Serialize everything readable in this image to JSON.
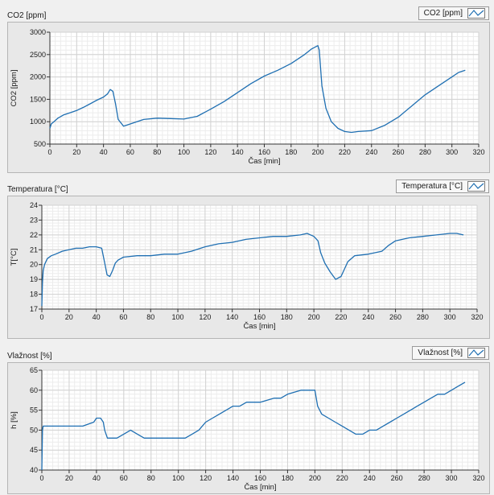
{
  "chart_data": [
    {
      "type": "line",
      "title": "CO2 [ppm]",
      "legend": "CO2 [ppm]",
      "xlabel": "Čas [min]",
      "ylabel": "CO2 [ppm]",
      "xlim": [
        0,
        320
      ],
      "ylim": [
        500,
        3000
      ],
      "xticks": [
        0,
        20,
        40,
        60,
        80,
        100,
        120,
        140,
        160,
        180,
        200,
        220,
        240,
        260,
        280,
        300,
        320
      ],
      "yticks": [
        500,
        1000,
        1500,
        2000,
        2500,
        3000
      ],
      "color": "#1f6fb2",
      "grid": true,
      "legend_position": "top-right",
      "series": [
        {
          "x": [
            0,
            1,
            3,
            6,
            10,
            15,
            20,
            25,
            30,
            35,
            40,
            43,
            45,
            47,
            49,
            51,
            55,
            60,
            70,
            80,
            90,
            100,
            110,
            120,
            130,
            140,
            150,
            160,
            170,
            180,
            190,
            195,
            200,
            201,
            203,
            206,
            210,
            215,
            220,
            225,
            230,
            240,
            250,
            260,
            270,
            280,
            290,
            300,
            305,
            310
          ],
          "y": [
            850,
            950,
            1000,
            1080,
            1150,
            1200,
            1250,
            1320,
            1400,
            1480,
            1550,
            1620,
            1720,
            1680,
            1400,
            1050,
            900,
            950,
            1050,
            1080,
            1070,
            1060,
            1120,
            1280,
            1450,
            1650,
            1850,
            2020,
            2150,
            2300,
            2500,
            2620,
            2700,
            2600,
            1800,
            1300,
            1000,
            850,
            780,
            760,
            780,
            800,
            920,
            1100,
            1350,
            1600,
            1800,
            2000,
            2100,
            2150
          ]
        }
      ]
    },
    {
      "type": "line",
      "title": "Temperatura [°C]",
      "legend": "Temperatura [°C]",
      "xlabel": "Čas [min]",
      "ylabel": "T[°C]",
      "xlim": [
        0,
        320
      ],
      "ylim": [
        17,
        24
      ],
      "xticks": [
        0,
        20,
        40,
        60,
        80,
        100,
        120,
        140,
        160,
        180,
        200,
        220,
        240,
        260,
        280,
        300,
        320
      ],
      "yticks": [
        17,
        18,
        19,
        20,
        21,
        22,
        23,
        24
      ],
      "color": "#1f6fb2",
      "grid": true,
      "legend_position": "top-right",
      "series": [
        {
          "x": [
            0,
            0.5,
            1,
            2,
            4,
            7,
            10,
            15,
            20,
            25,
            30,
            35,
            40,
            44,
            46,
            48,
            50,
            52,
            54,
            56,
            60,
            70,
            80,
            90,
            100,
            110,
            120,
            130,
            140,
            150,
            160,
            170,
            180,
            190,
            195,
            200,
            203,
            205,
            208,
            212,
            216,
            220,
            225,
            230,
            240,
            250,
            255,
            260,
            270,
            280,
            290,
            300,
            305,
            310
          ],
          "y": [
            17.2,
            18.8,
            19.6,
            20.0,
            20.4,
            20.6,
            20.7,
            20.9,
            21.0,
            21.1,
            21.1,
            21.2,
            21.2,
            21.1,
            20.2,
            19.3,
            19.2,
            19.6,
            20.1,
            20.3,
            20.5,
            20.6,
            20.6,
            20.7,
            20.7,
            20.9,
            21.2,
            21.4,
            21.5,
            21.7,
            21.8,
            21.9,
            21.9,
            22.0,
            22.1,
            21.9,
            21.6,
            20.8,
            20.1,
            19.5,
            19.0,
            19.2,
            20.2,
            20.6,
            20.7,
            20.9,
            21.3,
            21.6,
            21.8,
            21.9,
            22.0,
            22.1,
            22.1,
            22.0
          ]
        }
      ]
    },
    {
      "type": "line",
      "title": "Vlažnost [%]",
      "legend": "Vlažnost [%]",
      "xlabel": "Čas [min]",
      "ylabel": "h [%]",
      "xlim": [
        0,
        320
      ],
      "ylim": [
        40,
        65
      ],
      "xticks": [
        0,
        20,
        40,
        60,
        80,
        100,
        120,
        140,
        160,
        180,
        200,
        220,
        240,
        260,
        280,
        300,
        320
      ],
      "yticks": [
        40,
        45,
        50,
        55,
        60,
        65
      ],
      "color": "#1f6fb2",
      "grid": true,
      "legend_position": "top-right",
      "series": [
        {
          "x": [
            0,
            0.5,
            1,
            2,
            5,
            10,
            20,
            30,
            38,
            40,
            43,
            45,
            46,
            48,
            50,
            52,
            55,
            60,
            65,
            70,
            75,
            80,
            90,
            100,
            105,
            110,
            115,
            120,
            125,
            130,
            135,
            140,
            145,
            150,
            160,
            170,
            175,
            180,
            190,
            200,
            202,
            205,
            210,
            215,
            220,
            225,
            230,
            235,
            240,
            245,
            250,
            255,
            260,
            265,
            270,
            275,
            280,
            285,
            290,
            295,
            300,
            305,
            310
          ],
          "y": [
            40,
            50,
            51,
            51,
            51,
            51,
            51,
            51,
            52,
            53,
            53,
            52,
            50,
            48,
            48,
            48,
            48,
            49,
            50,
            49,
            48,
            48,
            48,
            48,
            48,
            49,
            50,
            52,
            53,
            54,
            55,
            56,
            56,
            57,
            57,
            58,
            58,
            59,
            60,
            60,
            56,
            54,
            53,
            52,
            51,
            50,
            49,
            49,
            50,
            50,
            51,
            52,
            53,
            54,
            55,
            56,
            57,
            58,
            59,
            59,
            60,
            61,
            62
          ]
        }
      ]
    }
  ]
}
